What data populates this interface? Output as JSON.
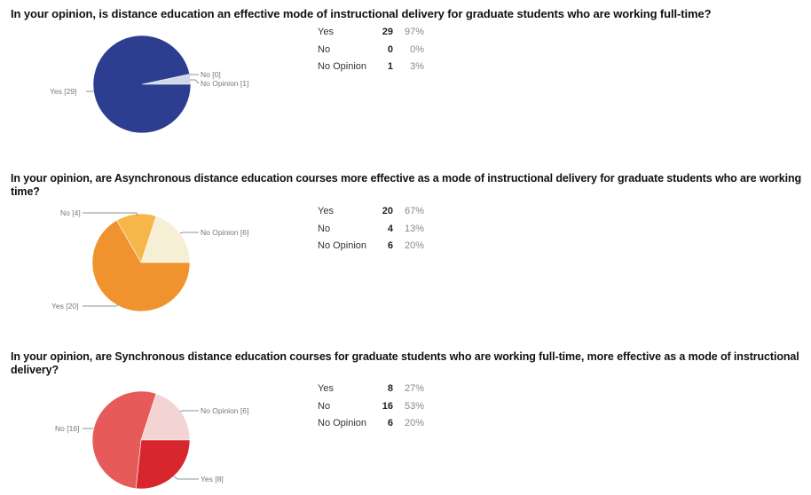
{
  "questions": [
    {
      "text": "In your opinion, is distance education an effective mode of instructional delivery for graduate students who are working full-time?",
      "rows": [
        {
          "label": "Yes",
          "count": "29",
          "percent": "97%"
        },
        {
          "label": "No",
          "count": "0",
          "percent": "0%"
        },
        {
          "label": "No Opinion",
          "count": "1",
          "percent": "3%"
        }
      ],
      "pie_labels": {
        "yes": "Yes  [29]",
        "no": "No [0]",
        "no_opinion": "No Opinion [1]"
      }
    },
    {
      "text": "In your opinion, are Asynchronous distance education courses more effective as a mode of instructional delivery for graduate students who are working time?",
      "rows": [
        {
          "label": "Yes",
          "count": "20",
          "percent": "67%"
        },
        {
          "label": "No",
          "count": "4",
          "percent": "13%"
        },
        {
          "label": "No Opinion",
          "count": "6",
          "percent": "20%"
        }
      ],
      "pie_labels": {
        "yes": "Yes [20]",
        "no": "No [4]",
        "no_opinion": "No Opinion [6]"
      }
    },
    {
      "text": "In your opinion, are Synchronous distance education courses for graduate students who are working full-time, more effective as a mode of instructional delivery?",
      "rows": [
        {
          "label": "Yes",
          "count": "8",
          "percent": "27%"
        },
        {
          "label": "No",
          "count": "16",
          "percent": "53%"
        },
        {
          "label": "No Opinion",
          "count": "6",
          "percent": "20%"
        }
      ],
      "pie_labels": {
        "yes": "Yes [8]",
        "no": "No [16]",
        "no_opinion": "No Opinion [6]"
      }
    }
  ],
  "chart_data": [
    {
      "type": "pie",
      "title": "In your opinion, is distance education an effective mode of instructional delivery for graduate students who are working full-time?",
      "categories": [
        "Yes",
        "No",
        "No Opinion"
      ],
      "values": [
        29,
        0,
        1
      ],
      "percentages": [
        97,
        0,
        3
      ],
      "colors": {
        "Yes": "#2d3e91",
        "No": "#6f7fc2",
        "No Opinion": "#cfd8e6"
      }
    },
    {
      "type": "pie",
      "title": "In your opinion, are Asynchronous distance education courses more effective as a mode of instructional delivery for graduate students who are working time?",
      "categories": [
        "Yes",
        "No",
        "No Opinion"
      ],
      "values": [
        20,
        4,
        6
      ],
      "percentages": [
        67,
        13,
        20
      ],
      "colors": {
        "Yes": "#f0932f",
        "No": "#f6b64a",
        "No Opinion": "#f6efd6"
      }
    },
    {
      "type": "pie",
      "title": "In your opinion, are Synchronous distance education courses for graduate students who are working full-time, more effective as a mode of instructional delivery?",
      "categories": [
        "Yes",
        "No",
        "No Opinion"
      ],
      "values": [
        8,
        16,
        6
      ],
      "percentages": [
        27,
        53,
        20
      ],
      "colors": {
        "Yes": "#d8262f",
        "No": "#e65a5a",
        "No Opinion": "#f3d4d2"
      }
    }
  ]
}
